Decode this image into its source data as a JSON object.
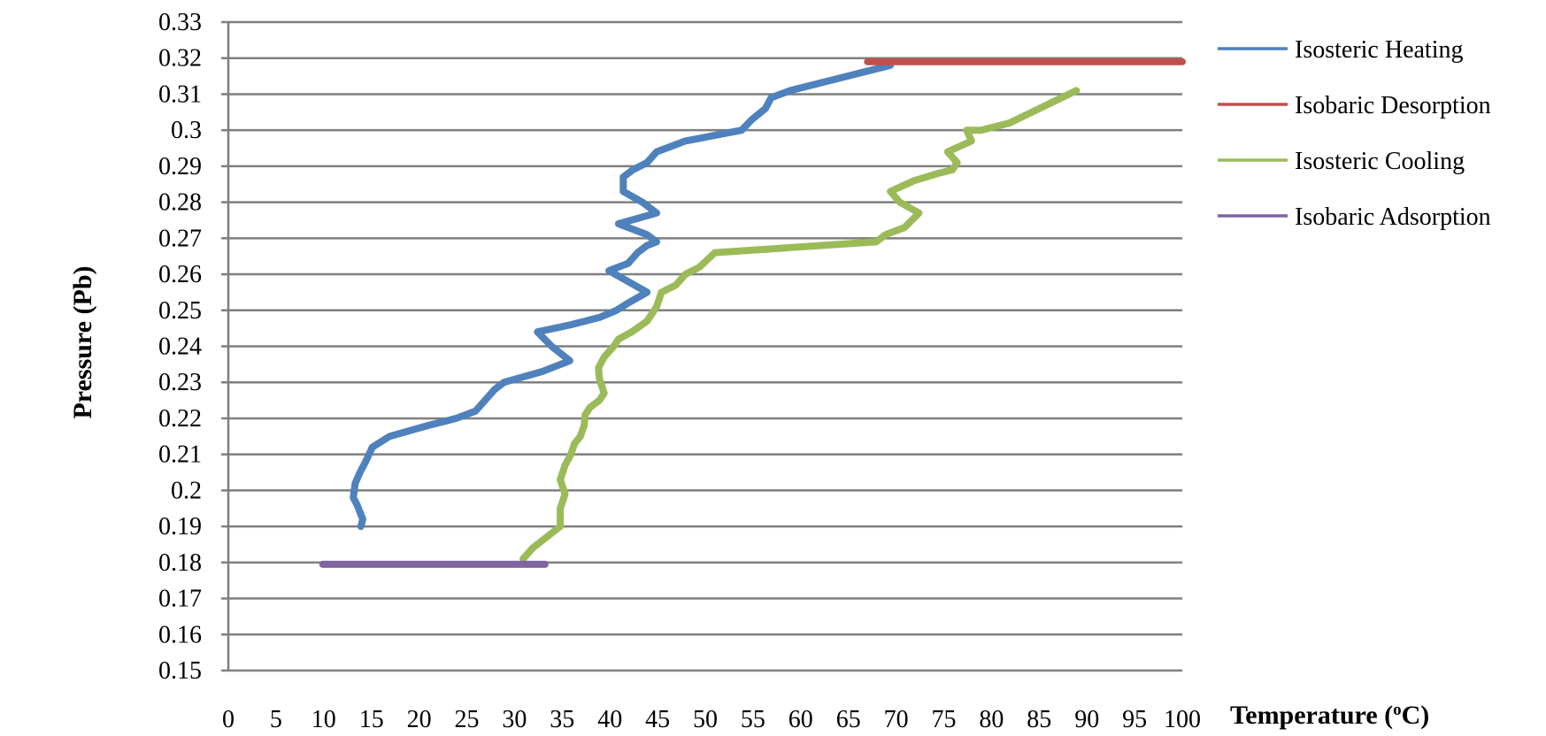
{
  "chart_data": {
    "type": "line",
    "title": "",
    "xlabel": "Temperature (",
    "xlabel_sup": "o",
    "xlabel_suffix": "C)",
    "ylabel": "Pressure (Pb)",
    "xlim": [
      0,
      100
    ],
    "ylim": [
      0.15,
      0.33
    ],
    "x_ticks": [
      0,
      5,
      10,
      15,
      20,
      25,
      30,
      35,
      40,
      45,
      50,
      55,
      60,
      65,
      70,
      75,
      80,
      85,
      90,
      95,
      100
    ],
    "y_ticks": [
      0.15,
      0.16,
      0.17,
      0.18,
      0.19,
      0.2,
      0.21,
      0.22,
      0.23,
      0.24,
      0.25,
      0.26,
      0.27,
      0.28,
      0.29,
      0.3,
      0.31,
      0.32,
      0.33
    ],
    "y_tick_labels": [
      "0.15",
      "0.16",
      "0.17",
      "0.18",
      "0.19",
      "0.2",
      "0.21",
      "0.22",
      "0.23",
      "0.24",
      "0.25",
      "0.26",
      "0.27",
      "0.28",
      "0.29",
      "0.3",
      "0.31",
      "0.32",
      "0.33"
    ],
    "grid": "horizontal",
    "legend_position": "right",
    "series": [
      {
        "name": "Isosteric Heating",
        "color": "#4F81BD",
        "points": [
          [
            13.9,
            0.19
          ],
          [
            14.1,
            0.192
          ],
          [
            13.5,
            0.196
          ],
          [
            13.1,
            0.198
          ],
          [
            13.3,
            0.202
          ],
          [
            13.8,
            0.205
          ],
          [
            14.4,
            0.208
          ],
          [
            15.1,
            0.212
          ],
          [
            16.9,
            0.215
          ],
          [
            20.9,
            0.218
          ],
          [
            23.9,
            0.22
          ],
          [
            25.9,
            0.222
          ],
          [
            26.9,
            0.225
          ],
          [
            27.9,
            0.228
          ],
          [
            28.9,
            0.23
          ],
          [
            32.9,
            0.233
          ],
          [
            35.8,
            0.236
          ],
          [
            33.9,
            0.24
          ],
          [
            32.4,
            0.244
          ],
          [
            35.9,
            0.246
          ],
          [
            38.9,
            0.248
          ],
          [
            40.7,
            0.25
          ],
          [
            41.9,
            0.252
          ],
          [
            43.9,
            0.255
          ],
          [
            41.9,
            0.258
          ],
          [
            39.9,
            0.261
          ],
          [
            41.9,
            0.263
          ],
          [
            42.9,
            0.266
          ],
          [
            43.9,
            0.268
          ],
          [
            44.9,
            0.269
          ],
          [
            43.9,
            0.271
          ],
          [
            40.9,
            0.274
          ],
          [
            44.9,
            0.277
          ],
          [
            43.4,
            0.28
          ],
          [
            41.4,
            0.283
          ],
          [
            41.4,
            0.287
          ],
          [
            42.4,
            0.289
          ],
          [
            43.9,
            0.291
          ],
          [
            44.9,
            0.294
          ],
          [
            47.9,
            0.297
          ],
          [
            53.8,
            0.3
          ],
          [
            54.9,
            0.303
          ],
          [
            56.3,
            0.306
          ],
          [
            56.9,
            0.309
          ],
          [
            57.9,
            0.31
          ],
          [
            58.9,
            0.311
          ],
          [
            69.4,
            0.318
          ]
        ]
      },
      {
        "name": "Isobaric Desorption",
        "color": "#C0504D",
        "points": [
          [
            67.0,
            0.319
          ],
          [
            100.0,
            0.319
          ]
        ]
      },
      {
        "name": "Isosteric Cooling",
        "color": "#9BBB59",
        "points": [
          [
            30.9,
            0.181
          ],
          [
            31.9,
            0.184
          ],
          [
            34.8,
            0.19
          ],
          [
            34.8,
            0.195
          ],
          [
            35.3,
            0.199
          ],
          [
            34.8,
            0.203
          ],
          [
            35.3,
            0.207
          ],
          [
            35.9,
            0.21
          ],
          [
            36.3,
            0.213
          ],
          [
            36.9,
            0.215
          ],
          [
            37.3,
            0.218
          ],
          [
            37.4,
            0.221
          ],
          [
            37.9,
            0.223
          ],
          [
            38.9,
            0.225
          ],
          [
            39.4,
            0.227
          ],
          [
            38.9,
            0.231
          ],
          [
            38.8,
            0.234
          ],
          [
            39.4,
            0.237
          ],
          [
            40.4,
            0.24
          ],
          [
            40.9,
            0.242
          ],
          [
            42.3,
            0.244
          ],
          [
            43.9,
            0.247
          ],
          [
            44.9,
            0.251
          ],
          [
            45.4,
            0.255
          ],
          [
            46.9,
            0.257
          ],
          [
            47.9,
            0.26
          ],
          [
            49.4,
            0.262
          ],
          [
            51.0,
            0.266
          ],
          [
            67.9,
            0.269
          ],
          [
            68.9,
            0.271
          ],
          [
            70.9,
            0.273
          ],
          [
            72.4,
            0.277
          ],
          [
            70.4,
            0.28
          ],
          [
            69.4,
            0.283
          ],
          [
            71.9,
            0.286
          ],
          [
            74.4,
            0.288
          ],
          [
            75.9,
            0.289
          ],
          [
            76.4,
            0.291
          ],
          [
            75.4,
            0.294
          ],
          [
            77.9,
            0.297
          ],
          [
            77.4,
            0.3
          ],
          [
            78.9,
            0.3
          ],
          [
            81.9,
            0.302
          ],
          [
            88.9,
            0.311
          ]
        ]
      },
      {
        "name": "Isobaric Adsorption",
        "color": "#8064A2",
        "points": [
          [
            9.9,
            0.1795
          ],
          [
            33.2,
            0.1795
          ]
        ]
      }
    ]
  }
}
